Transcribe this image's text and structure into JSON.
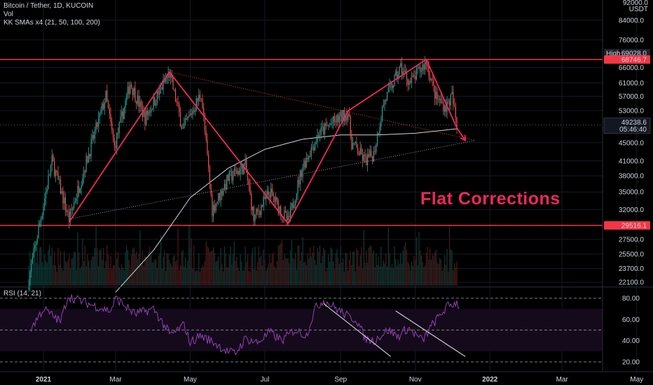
{
  "header": {
    "symbol_line": "Bitcoin / Tether, 1D, KUCOIN",
    "vol_label": "Vol",
    "sma_label": "KK SMAs x4 (21, 50, 100, 200)",
    "rsi_label": "RSI (14, 21)",
    "currency": "USDT",
    "top_label": "92000.0"
  },
  "chart_data": {
    "type": "candlestick",
    "title": "Bitcoin / Tether, 1D, KUCOIN",
    "annotation": "Flat Corrections",
    "x_labels": [
      "2021",
      "Mar",
      "May",
      "Jul",
      "Sep",
      "Nov",
      "2022",
      "Mar",
      "May"
    ],
    "price_ticks": [
      84000.0,
      76000.0,
      66000.0,
      61000.0,
      57000.0,
      53000.0,
      45000.0,
      41000.0,
      38000.0,
      35000.0,
      32000.0,
      27500.0,
      25500.0,
      23700.0,
      22100.0
    ],
    "price_tick_labels": [
      "84000.0",
      "76000.0",
      "66000.0",
      "61000.0",
      "57000.0",
      "53000.0",
      "45000.0",
      "41000.0",
      "38000.0",
      "35000.0",
      "32000.0",
      "27500.0",
      "25500.0",
      "23700.0",
      "22100.0"
    ],
    "price_scale": "log",
    "high_marker": {
      "label": "High",
      "value": 69028.0,
      "text": "69028.0"
    },
    "resistance": {
      "value": 68746.7,
      "text": "68746.7"
    },
    "support": {
      "value": 29516.1,
      "text": "29516.1"
    },
    "last_price": {
      "value": 49238.6,
      "text": "49238.6",
      "countdown": "05:46:40"
    },
    "rsi_ticks": [
      80.0,
      60.0,
      40.0,
      20.0
    ],
    "rsi_tick_labels": [
      "80.00",
      "60.00",
      "40.00",
      "20.00"
    ],
    "rsi_bands": [
      30,
      70
    ],
    "zigzag": [
      {
        "date": "2021-01-22",
        "price": 30000
      },
      {
        "date": "2021-04-14",
        "price": 64500
      },
      {
        "date": "2021-07-20",
        "price": 29800
      },
      {
        "date": "2021-09-07",
        "price": 52900
      },
      {
        "date": "2021-11-10",
        "price": 68800
      },
      {
        "date": "2021-12-05",
        "price": 48500
      }
    ],
    "arrow_to": {
      "date": "2021-12-12",
      "price": 45500
    },
    "rsi_trendlines": [
      {
        "from": {
          "date": "2021-08-18",
          "value": 75
        },
        "to": {
          "date": "2021-10-12",
          "value": 25
        }
      },
      {
        "from": {
          "date": "2021-10-16",
          "value": 68
        },
        "to": {
          "date": "2021-12-12",
          "value": 25
        }
      }
    ],
    "sma200": [
      {
        "date": "2021-03-01",
        "price": 21000
      },
      {
        "date": "2021-04-01",
        "price": 26000
      },
      {
        "date": "2021-05-01",
        "price": 34000
      },
      {
        "date": "2021-06-01",
        "price": 39500
      },
      {
        "date": "2021-07-01",
        "price": 43500
      },
      {
        "date": "2021-08-01",
        "price": 45800
      },
      {
        "date": "2021-09-01",
        "price": 46800
      },
      {
        "date": "2021-10-01",
        "price": 46800
      },
      {
        "date": "2021-11-01",
        "price": 47200
      },
      {
        "date": "2021-12-05",
        "price": 48300
      }
    ],
    "key_points": [
      {
        "date": "2020-12-20",
        "price": 22500
      },
      {
        "date": "2021-01-08",
        "price": 41000
      },
      {
        "date": "2021-01-22",
        "price": 30500
      },
      {
        "date": "2021-02-21",
        "price": 57000
      },
      {
        "date": "2021-02-28",
        "price": 44000
      },
      {
        "date": "2021-03-13",
        "price": 61000
      },
      {
        "date": "2021-03-25",
        "price": 51000
      },
      {
        "date": "2021-04-14",
        "price": 64000
      },
      {
        "date": "2021-04-25",
        "price": 48000
      },
      {
        "date": "2021-05-10",
        "price": 58000
      },
      {
        "date": "2021-05-19",
        "price": 32000
      },
      {
        "date": "2021-06-01",
        "price": 37500
      },
      {
        "date": "2021-06-15",
        "price": 40000
      },
      {
        "date": "2021-06-22",
        "price": 30500
      },
      {
        "date": "2021-07-05",
        "price": 35000
      },
      {
        "date": "2021-07-20",
        "price": 30000
      },
      {
        "date": "2021-08-01",
        "price": 40000
      },
      {
        "date": "2021-08-14",
        "price": 47000
      },
      {
        "date": "2021-08-22",
        "price": 49000
      },
      {
        "date": "2021-09-07",
        "price": 52500
      },
      {
        "date": "2021-09-10",
        "price": 45000
      },
      {
        "date": "2021-09-21",
        "price": 41000
      },
      {
        "date": "2021-09-28",
        "price": 42500
      },
      {
        "date": "2021-10-06",
        "price": 55000
      },
      {
        "date": "2021-10-20",
        "price": 66000
      },
      {
        "date": "2021-10-28",
        "price": 61000
      },
      {
        "date": "2021-11-10",
        "price": 68000
      },
      {
        "date": "2021-11-18",
        "price": 56500
      },
      {
        "date": "2021-11-26",
        "price": 54000
      },
      {
        "date": "2021-12-01",
        "price": 57000
      },
      {
        "date": "2021-12-05",
        "price": 49000
      }
    ]
  },
  "colors": {
    "background": "#000000",
    "grid": "#161a22",
    "candle_up": "#26a69a",
    "candle_down": "#ef5350",
    "level_line": "#f23645",
    "zigzag": "#f0275e",
    "sma": "#d1d4dc",
    "rsi_line": "#8e44ad",
    "rsi_fill": "#150a1c",
    "text": "#d1d4dc"
  }
}
